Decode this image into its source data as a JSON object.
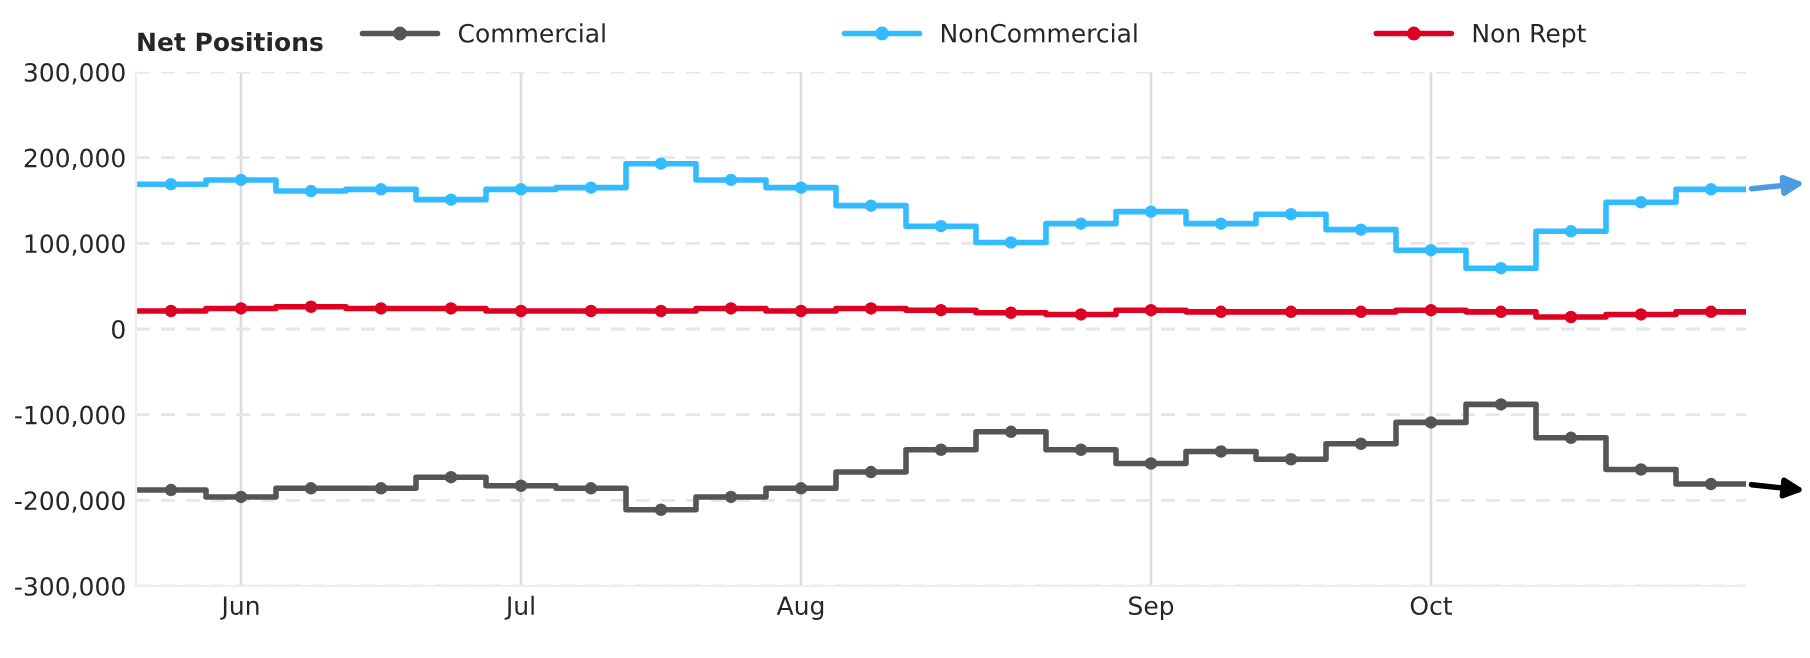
{
  "chart_data": {
    "type": "step",
    "legend_title": "Net Positions",
    "categories": [
      null,
      "Jun",
      null,
      null,
      null,
      "Jul",
      null,
      null,
      null,
      "Aug",
      null,
      null,
      null,
      null,
      "Sep",
      null,
      null,
      null,
      "Oct",
      null,
      null,
      null,
      null
    ],
    "series": [
      {
        "name": "Commercial",
        "color": "#555555",
        "values": [
          -188000,
          -196000,
          -186000,
          -186000,
          -173000,
          -183000,
          -186000,
          -211000,
          -196000,
          -186000,
          -167000,
          -141000,
          -120000,
          -141000,
          -157000,
          -143000,
          -152000,
          -134000,
          -109000,
          -88000,
          -127000,
          -164000,
          -181000
        ]
      },
      {
        "name": "NonCommercial",
        "color": "#33bbff",
        "values": [
          169000,
          174000,
          161000,
          163000,
          151000,
          163000,
          165000,
          193000,
          174000,
          165000,
          144000,
          120000,
          101000,
          123000,
          137000,
          123000,
          134000,
          116000,
          92000,
          71000,
          114000,
          148000,
          163000
        ]
      },
      {
        "name": "Non Rept",
        "color": "#dd0022",
        "values": [
          21000,
          24000,
          26000,
          24000,
          24000,
          21000,
          21000,
          21000,
          24000,
          21000,
          24000,
          22000,
          19000,
          17000,
          22000,
          20000,
          20000,
          20000,
          22000,
          20000,
          14000,
          17000,
          20000
        ]
      }
    ],
    "ylim": [
      -300000,
      300000
    ],
    "yticks": [
      {
        "value": -300000,
        "label": "-300,000"
      },
      {
        "value": -200000,
        "label": "-200,000"
      },
      {
        "value": -100000,
        "label": "-100,000"
      },
      0,
      {
        "value": 100000,
        "label": "100,000"
      },
      {
        "value": 200000,
        "label": "200,000"
      },
      {
        "value": 300000,
        "label": "300,000"
      }
    ],
    "grid": true,
    "legend": "top",
    "marker": "circle",
    "line_style": "solid"
  }
}
